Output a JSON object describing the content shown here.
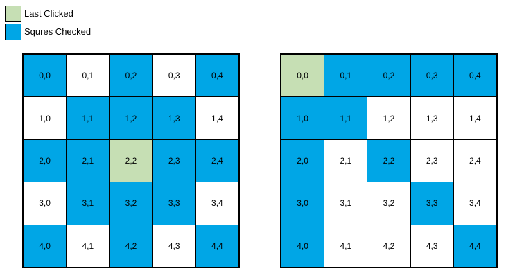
{
  "colors": {
    "last_clicked": "#c6dfb4",
    "checked": "#00a6e6",
    "unchecked": "#ffffff",
    "border": "#000000"
  },
  "legend": {
    "items": [
      {
        "label": "Last Clicked",
        "state": "clicked"
      },
      {
        "label": "Squres Checked",
        "state": "checked"
      }
    ]
  },
  "grids": [
    {
      "rows": [
        [
          {
            "label": "0,0",
            "state": "checked"
          },
          {
            "label": "0,1",
            "state": "unchecked"
          },
          {
            "label": "0,2",
            "state": "checked"
          },
          {
            "label": "0,3",
            "state": "unchecked"
          },
          {
            "label": "0,4",
            "state": "checked"
          }
        ],
        [
          {
            "label": "1,0",
            "state": "unchecked"
          },
          {
            "label": "1,1",
            "state": "checked"
          },
          {
            "label": "1,2",
            "state": "checked"
          },
          {
            "label": "1,3",
            "state": "checked"
          },
          {
            "label": "1,4",
            "state": "unchecked"
          }
        ],
        [
          {
            "label": "2,0",
            "state": "checked"
          },
          {
            "label": "2,1",
            "state": "checked"
          },
          {
            "label": "2,2",
            "state": "clicked"
          },
          {
            "label": "2,3",
            "state": "checked"
          },
          {
            "label": "2,4",
            "state": "checked"
          }
        ],
        [
          {
            "label": "3,0",
            "state": "unchecked"
          },
          {
            "label": "3,1",
            "state": "checked"
          },
          {
            "label": "3,2",
            "state": "checked"
          },
          {
            "label": "3,3",
            "state": "checked"
          },
          {
            "label": "3,4",
            "state": "unchecked"
          }
        ],
        [
          {
            "label": "4,0",
            "state": "checked"
          },
          {
            "label": "4,1",
            "state": "unchecked"
          },
          {
            "label": "4,2",
            "state": "checked"
          },
          {
            "label": "4,3",
            "state": "unchecked"
          },
          {
            "label": "4,4",
            "state": "checked"
          }
        ]
      ]
    },
    {
      "rows": [
        [
          {
            "label": "0,0",
            "state": "clicked"
          },
          {
            "label": "0,1",
            "state": "checked"
          },
          {
            "label": "0,2",
            "state": "checked"
          },
          {
            "label": "0,3",
            "state": "checked"
          },
          {
            "label": "0,4",
            "state": "checked"
          }
        ],
        [
          {
            "label": "1,0",
            "state": "checked"
          },
          {
            "label": "1,1",
            "state": "checked"
          },
          {
            "label": "1,2",
            "state": "unchecked"
          },
          {
            "label": "1,3",
            "state": "unchecked"
          },
          {
            "label": "1,4",
            "state": "unchecked"
          }
        ],
        [
          {
            "label": "2,0",
            "state": "checked"
          },
          {
            "label": "2,1",
            "state": "unchecked"
          },
          {
            "label": "2,2",
            "state": "checked"
          },
          {
            "label": "2,3",
            "state": "unchecked"
          },
          {
            "label": "2,4",
            "state": "unchecked"
          }
        ],
        [
          {
            "label": "3,0",
            "state": "checked"
          },
          {
            "label": "3,1",
            "state": "unchecked"
          },
          {
            "label": "3,2",
            "state": "unchecked"
          },
          {
            "label": "3,3",
            "state": "checked"
          },
          {
            "label": "3,4",
            "state": "unchecked"
          }
        ],
        [
          {
            "label": "4,0",
            "state": "checked"
          },
          {
            "label": "4,1",
            "state": "unchecked"
          },
          {
            "label": "4,2",
            "state": "unchecked"
          },
          {
            "label": "4,3",
            "state": "unchecked"
          },
          {
            "label": "4,4",
            "state": "checked"
          }
        ]
      ]
    }
  ]
}
